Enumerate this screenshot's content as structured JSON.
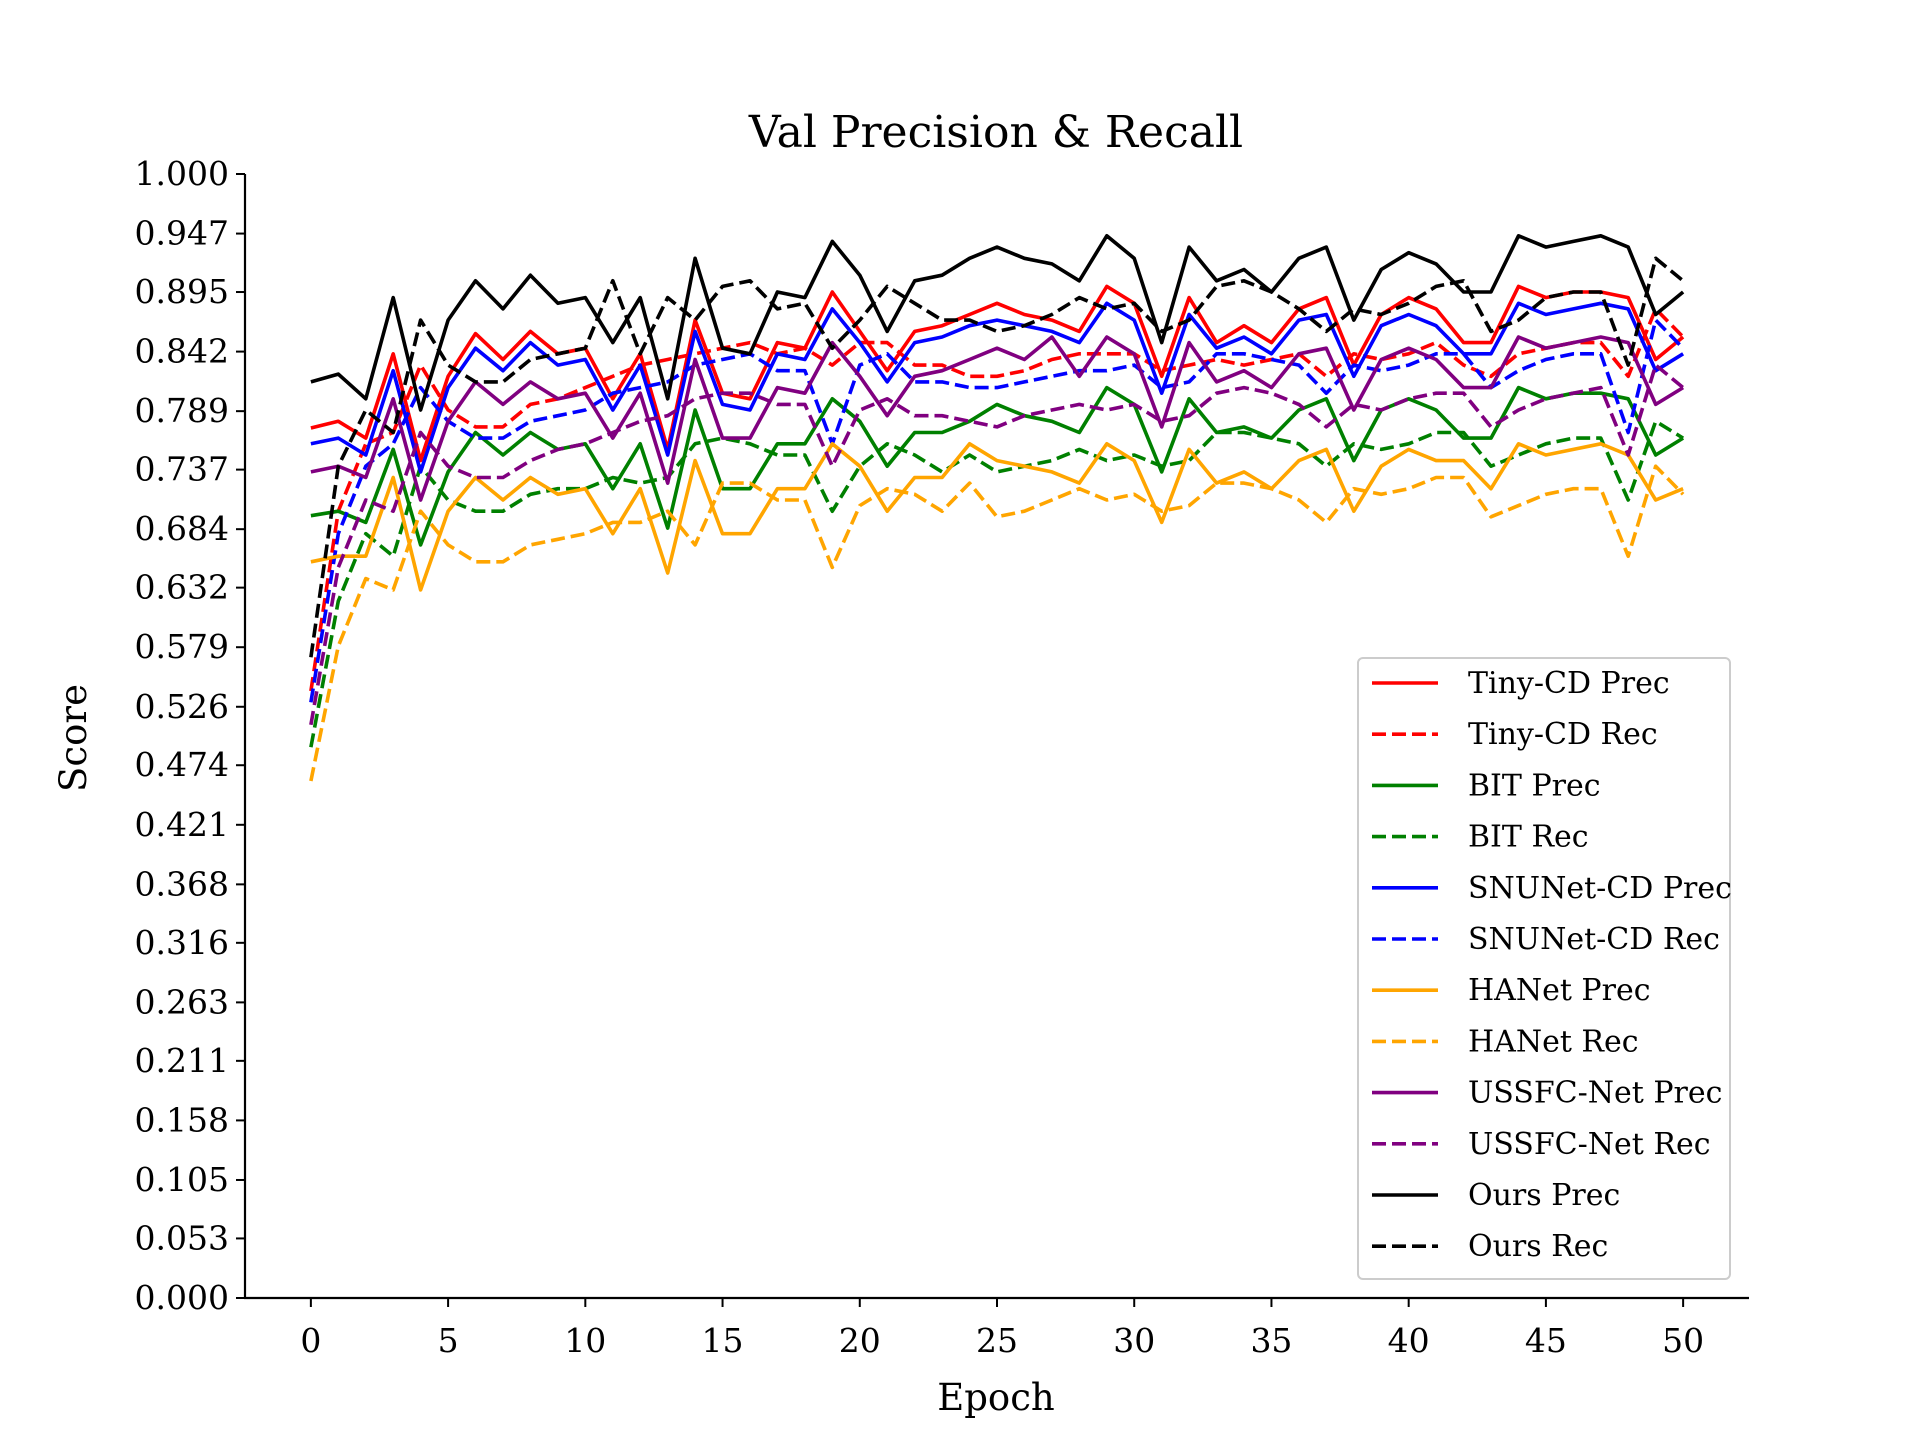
{
  "chart_data": {
    "type": "line",
    "title": "Val Precision & Recall",
    "xlabel": "Epoch",
    "ylabel": "Score",
    "xlim": [
      -2.4,
      52.4
    ],
    "ylim": [
      0,
      1
    ],
    "x_ticks": [
      0,
      5,
      10,
      15,
      20,
      25,
      30,
      35,
      40,
      45,
      50
    ],
    "y_ticks": [
      0.0,
      0.053,
      0.105,
      0.158,
      0.211,
      0.263,
      0.316,
      0.368,
      0.421,
      0.474,
      0.526,
      0.579,
      0.632,
      0.684,
      0.737,
      0.789,
      0.842,
      0.895,
      0.947,
      1.0
    ],
    "y_tick_labels": [
      "0.000",
      "0.053",
      "0.105",
      "0.158",
      "0.211",
      "0.263",
      "0.316",
      "0.368",
      "0.421",
      "0.474",
      "0.526",
      "0.579",
      "0.632",
      "0.684",
      "0.737",
      "0.789",
      "0.842",
      "0.895",
      "0.947",
      "1.000"
    ],
    "grid": false,
    "legend_position": "lower-right",
    "x": [
      0,
      1,
      2,
      3,
      4,
      5,
      6,
      7,
      8,
      9,
      10,
      11,
      12,
      13,
      14,
      15,
      16,
      17,
      18,
      19,
      20,
      21,
      22,
      23,
      24,
      25,
      26,
      27,
      28,
      29,
      30,
      31,
      32,
      33,
      34,
      35,
      36,
      37,
      38,
      39,
      40,
      41,
      42,
      43,
      44,
      45,
      46,
      47,
      48,
      49,
      50
    ],
    "series": [
      {
        "name": "Tiny-CD Prec",
        "color": "#ff0000",
        "dash": "solid",
        "values": [
          0.774,
          0.78,
          0.765,
          0.84,
          0.745,
          0.82,
          0.858,
          0.835,
          0.86,
          0.84,
          0.845,
          0.8,
          0.84,
          0.755,
          0.87,
          0.805,
          0.8,
          0.85,
          0.845,
          0.895,
          0.86,
          0.825,
          0.86,
          0.865,
          0.875,
          0.885,
          0.875,
          0.87,
          0.86,
          0.9,
          0.885,
          0.82,
          0.89,
          0.85,
          0.865,
          0.85,
          0.88,
          0.89,
          0.83,
          0.875,
          0.89,
          0.88,
          0.85,
          0.85,
          0.9,
          0.89,
          0.895,
          0.895,
          0.89,
          0.835,
          0.855
        ]
      },
      {
        "name": "Tiny-CD Rec",
        "color": "#ff0000",
        "dash": "dashed",
        "values": [
          0.54,
          0.7,
          0.76,
          0.77,
          0.83,
          0.79,
          0.775,
          0.775,
          0.795,
          0.8,
          0.81,
          0.82,
          0.83,
          0.835,
          0.84,
          0.845,
          0.85,
          0.84,
          0.845,
          0.83,
          0.85,
          0.85,
          0.83,
          0.83,
          0.82,
          0.82,
          0.825,
          0.835,
          0.84,
          0.84,
          0.84,
          0.825,
          0.83,
          0.835,
          0.83,
          0.835,
          0.84,
          0.82,
          0.84,
          0.835,
          0.84,
          0.85,
          0.83,
          0.82,
          0.84,
          0.845,
          0.85,
          0.85,
          0.82,
          0.88,
          0.855
        ]
      },
      {
        "name": "BIT Prec",
        "color": "#008000",
        "dash": "solid",
        "values": [
          0.696,
          0.7,
          0.69,
          0.755,
          0.67,
          0.735,
          0.77,
          0.75,
          0.77,
          0.755,
          0.76,
          0.72,
          0.76,
          0.685,
          0.79,
          0.72,
          0.72,
          0.76,
          0.76,
          0.8,
          0.78,
          0.74,
          0.77,
          0.77,
          0.78,
          0.795,
          0.785,
          0.78,
          0.77,
          0.81,
          0.795,
          0.735,
          0.8,
          0.77,
          0.775,
          0.765,
          0.79,
          0.8,
          0.745,
          0.79,
          0.8,
          0.79,
          0.765,
          0.765,
          0.81,
          0.8,
          0.805,
          0.805,
          0.8,
          0.75,
          0.765
        ]
      },
      {
        "name": "BIT Rec",
        "color": "#008000",
        "dash": "dashed",
        "values": [
          0.49,
          0.62,
          0.68,
          0.66,
          0.74,
          0.71,
          0.7,
          0.7,
          0.715,
          0.72,
          0.72,
          0.73,
          0.725,
          0.73,
          0.76,
          0.765,
          0.76,
          0.75,
          0.75,
          0.7,
          0.74,
          0.76,
          0.75,
          0.735,
          0.75,
          0.735,
          0.74,
          0.745,
          0.755,
          0.745,
          0.75,
          0.74,
          0.745,
          0.77,
          0.77,
          0.765,
          0.76,
          0.74,
          0.76,
          0.755,
          0.76,
          0.77,
          0.77,
          0.74,
          0.75,
          0.76,
          0.765,
          0.765,
          0.71,
          0.78,
          0.765
        ]
      },
      {
        "name": "SNUNet-CD Prec",
        "color": "#0000ff",
        "dash": "solid",
        "values": [
          0.76,
          0.765,
          0.75,
          0.825,
          0.735,
          0.81,
          0.845,
          0.825,
          0.85,
          0.83,
          0.835,
          0.79,
          0.83,
          0.75,
          0.86,
          0.795,
          0.79,
          0.84,
          0.835,
          0.88,
          0.85,
          0.815,
          0.85,
          0.855,
          0.865,
          0.87,
          0.865,
          0.86,
          0.85,
          0.885,
          0.87,
          0.805,
          0.875,
          0.845,
          0.855,
          0.84,
          0.87,
          0.875,
          0.82,
          0.865,
          0.875,
          0.865,
          0.84,
          0.84,
          0.885,
          0.875,
          0.88,
          0.885,
          0.88,
          0.825,
          0.84
        ]
      },
      {
        "name": "SNUNet-CD Rec",
        "color": "#0000ff",
        "dash": "dashed",
        "values": [
          0.53,
          0.68,
          0.74,
          0.76,
          0.81,
          0.78,
          0.765,
          0.765,
          0.78,
          0.785,
          0.79,
          0.805,
          0.81,
          0.815,
          0.83,
          0.835,
          0.84,
          0.825,
          0.825,
          0.76,
          0.83,
          0.84,
          0.815,
          0.815,
          0.81,
          0.81,
          0.815,
          0.82,
          0.825,
          0.825,
          0.83,
          0.81,
          0.815,
          0.84,
          0.84,
          0.835,
          0.83,
          0.805,
          0.83,
          0.825,
          0.83,
          0.84,
          0.84,
          0.81,
          0.825,
          0.835,
          0.84,
          0.84,
          0.77,
          0.87,
          0.845
        ]
      },
      {
        "name": "HANet Prec",
        "color": "#ffa500",
        "dash": "solid",
        "values": [
          0.655,
          0.66,
          0.66,
          0.73,
          0.63,
          0.7,
          0.73,
          0.71,
          0.73,
          0.715,
          0.72,
          0.68,
          0.72,
          0.645,
          0.745,
          0.68,
          0.68,
          0.72,
          0.72,
          0.76,
          0.74,
          0.7,
          0.73,
          0.73,
          0.76,
          0.745,
          0.74,
          0.735,
          0.725,
          0.76,
          0.745,
          0.69,
          0.755,
          0.725,
          0.735,
          0.72,
          0.745,
          0.755,
          0.7,
          0.74,
          0.755,
          0.745,
          0.745,
          0.72,
          0.76,
          0.75,
          0.755,
          0.76,
          0.75,
          0.71,
          0.72
        ]
      },
      {
        "name": "HANet Rec",
        "color": "#ffa500",
        "dash": "dashed",
        "values": [
          0.46,
          0.58,
          0.64,
          0.63,
          0.7,
          0.67,
          0.655,
          0.655,
          0.67,
          0.675,
          0.68,
          0.69,
          0.69,
          0.7,
          0.67,
          0.725,
          0.725,
          0.71,
          0.71,
          0.65,
          0.705,
          0.72,
          0.715,
          0.7,
          0.725,
          0.695,
          0.7,
          0.71,
          0.72,
          0.71,
          0.715,
          0.7,
          0.705,
          0.725,
          0.725,
          0.72,
          0.71,
          0.69,
          0.72,
          0.715,
          0.72,
          0.73,
          0.73,
          0.695,
          0.705,
          0.715,
          0.72,
          0.72,
          0.66,
          0.74,
          0.715
        ]
      },
      {
        "name": "USSFC-Net Prec",
        "color": "#800080",
        "dash": "solid",
        "values": [
          0.735,
          0.74,
          0.73,
          0.8,
          0.71,
          0.78,
          0.815,
          0.795,
          0.815,
          0.8,
          0.805,
          0.765,
          0.805,
          0.725,
          0.835,
          0.765,
          0.765,
          0.81,
          0.805,
          0.85,
          0.82,
          0.785,
          0.82,
          0.825,
          0.835,
          0.845,
          0.835,
          0.855,
          0.82,
          0.855,
          0.84,
          0.775,
          0.85,
          0.815,
          0.825,
          0.81,
          0.84,
          0.845,
          0.79,
          0.835,
          0.845,
          0.835,
          0.81,
          0.81,
          0.855,
          0.845,
          0.85,
          0.855,
          0.85,
          0.795,
          0.81
        ]
      },
      {
        "name": "USSFC-Net Rec",
        "color": "#800080",
        "dash": "dashed",
        "values": [
          0.51,
          0.65,
          0.71,
          0.7,
          0.77,
          0.74,
          0.73,
          0.73,
          0.745,
          0.755,
          0.76,
          0.77,
          0.78,
          0.785,
          0.8,
          0.805,
          0.805,
          0.795,
          0.795,
          0.74,
          0.79,
          0.8,
          0.785,
          0.785,
          0.78,
          0.775,
          0.785,
          0.79,
          0.795,
          0.79,
          0.795,
          0.78,
          0.785,
          0.805,
          0.81,
          0.805,
          0.795,
          0.775,
          0.795,
          0.79,
          0.8,
          0.805,
          0.805,
          0.775,
          0.79,
          0.8,
          0.805,
          0.81,
          0.75,
          0.83,
          0.81
        ]
      },
      {
        "name": "Ours Prec",
        "color": "#000000",
        "dash": "solid",
        "values": [
          0.815,
          0.822,
          0.8,
          0.89,
          0.79,
          0.87,
          0.905,
          0.88,
          0.91,
          0.885,
          0.89,
          0.85,
          0.89,
          0.8,
          0.925,
          0.845,
          0.84,
          0.895,
          0.89,
          0.94,
          0.91,
          0.86,
          0.905,
          0.91,
          0.925,
          0.935,
          0.925,
          0.92,
          0.905,
          0.945,
          0.925,
          0.85,
          0.935,
          0.905,
          0.915,
          0.895,
          0.925,
          0.935,
          0.87,
          0.915,
          0.93,
          0.92,
          0.895,
          0.895,
          0.945,
          0.935,
          0.94,
          0.945,
          0.935,
          0.875,
          0.895
        ]
      },
      {
        "name": "Ours Rec",
        "color": "#000000",
        "dash": "dashed",
        "values": [
          0.57,
          0.74,
          0.79,
          0.77,
          0.87,
          0.83,
          0.815,
          0.815,
          0.835,
          0.84,
          0.845,
          0.905,
          0.84,
          0.89,
          0.87,
          0.9,
          0.905,
          0.88,
          0.885,
          0.845,
          0.87,
          0.9,
          0.885,
          0.87,
          0.87,
          0.86,
          0.865,
          0.875,
          0.89,
          0.88,
          0.885,
          0.86,
          0.87,
          0.9,
          0.905,
          0.895,
          0.88,
          0.86,
          0.88,
          0.875,
          0.885,
          0.9,
          0.905,
          0.86,
          0.87,
          0.89,
          0.895,
          0.895,
          0.83,
          0.925,
          0.905
        ]
      }
    ]
  }
}
